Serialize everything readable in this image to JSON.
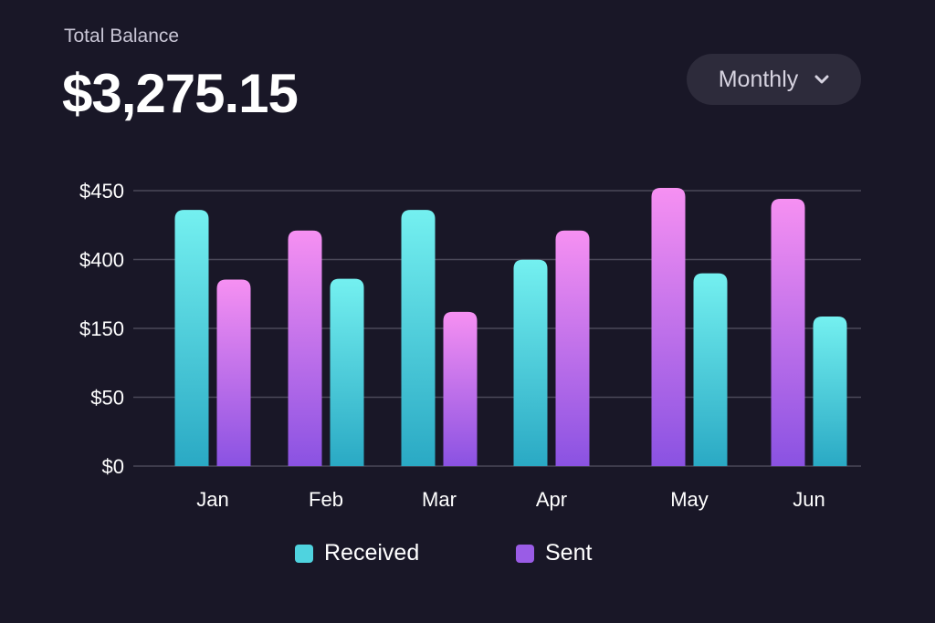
{
  "header": {
    "title": "Total Balance",
    "balance": "$3,275.15"
  },
  "period_select": {
    "value": "Monthly"
  },
  "colors": {
    "received_top": "#74f0f0",
    "received_bottom": "#2aa9c4",
    "sent_top": "#f690f2",
    "sent_bottom": "#8a52e2",
    "grid": "#4a4858",
    "background": "#191727"
  },
  "chart_data": {
    "type": "bar",
    "categories": [
      "Jan",
      "Feb",
      "Mar",
      "Apr",
      "May",
      "Jun"
    ],
    "y_ticks": [
      "$0",
      "$50",
      "$150",
      "$400",
      "$450"
    ],
    "y_tick_values": [
      0,
      50,
      150,
      400,
      450
    ],
    "series": [
      {
        "name": "Received",
        "values": [
          436,
          330,
          436,
          399,
          350,
          193
        ]
      },
      {
        "name": "Sent",
        "values": [
          327,
          421,
          210,
          421,
          452,
          444
        ]
      }
    ],
    "left_series": [
      "Received",
      "Sent",
      "Received",
      "Received",
      "Sent",
      "Sent"
    ],
    "grid": true,
    "legend_position": "bottom"
  }
}
